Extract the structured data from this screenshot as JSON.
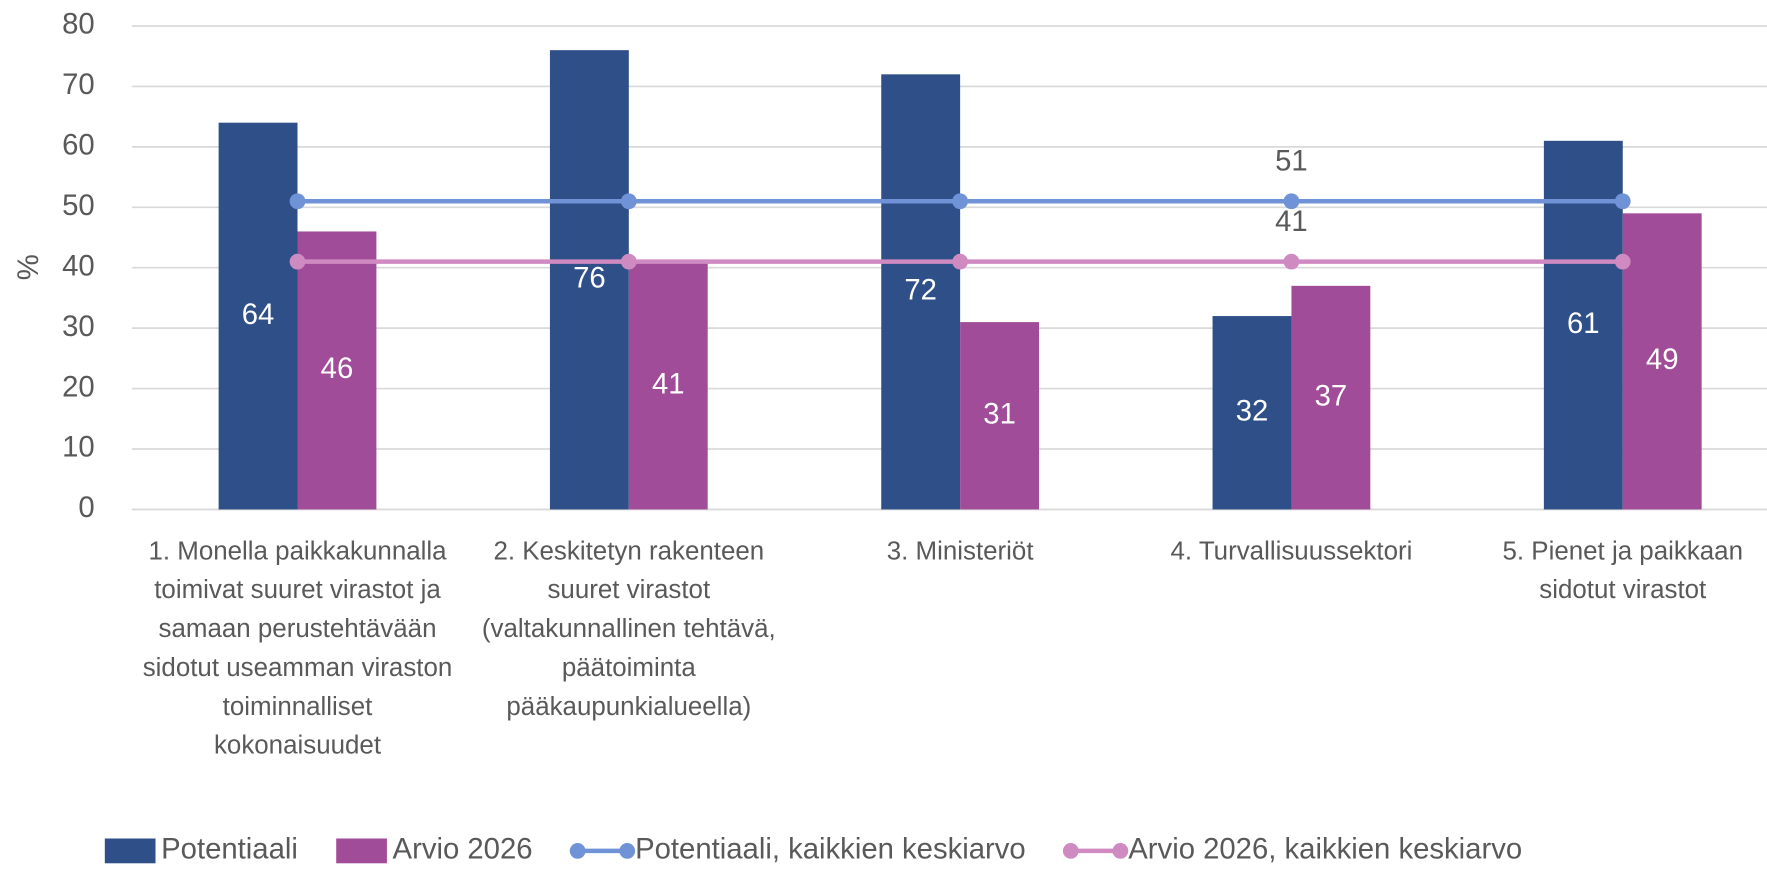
{
  "chart_data": {
    "type": "bar",
    "categories": [
      "1. Monella paikkakunnalla toimivat suuret virastot ja samaan perustehtävään sidotut useamman viraston toiminnalliset kokonaisuudet",
      "2. Keskitetyn rakenteen suuret virastot (valtakunnallinen tehtävä, päätoiminta pääkaupunkialueella)",
      "3. Ministeriöt",
      "4. Turvallisuussektori",
      "5. Pienet ja paikkaan sidotut virastot"
    ],
    "series": [
      {
        "name": "Potentiaali",
        "type": "bar",
        "color": "#2f4f88",
        "values": [
          64,
          76,
          72,
          32,
          61
        ]
      },
      {
        "name": "Arvio 2026",
        "type": "bar",
        "color": "#a04c98",
        "values": [
          46,
          41,
          31,
          37,
          49
        ]
      },
      {
        "name": "Potentiaali, kaikkien keskiarvo",
        "type": "line",
        "color": "#7093d8",
        "values": [
          51,
          51,
          51,
          51,
          51
        ],
        "value_labels": [
          null,
          null,
          null,
          "51",
          null
        ]
      },
      {
        "name": "Arvio 2026, kaikkien keskiarvo",
        "type": "line",
        "color": "#d08ac2",
        "values": [
          41,
          41,
          41,
          41,
          41
        ],
        "value_labels": [
          null,
          null,
          null,
          "41",
          null
        ]
      }
    ],
    "ylabel": "%",
    "ylim": [
      0,
      80
    ],
    "yticks": [
      0,
      10,
      20,
      30,
      40,
      50,
      60,
      70,
      80
    ],
    "grid": true,
    "legend": "bottom"
  }
}
